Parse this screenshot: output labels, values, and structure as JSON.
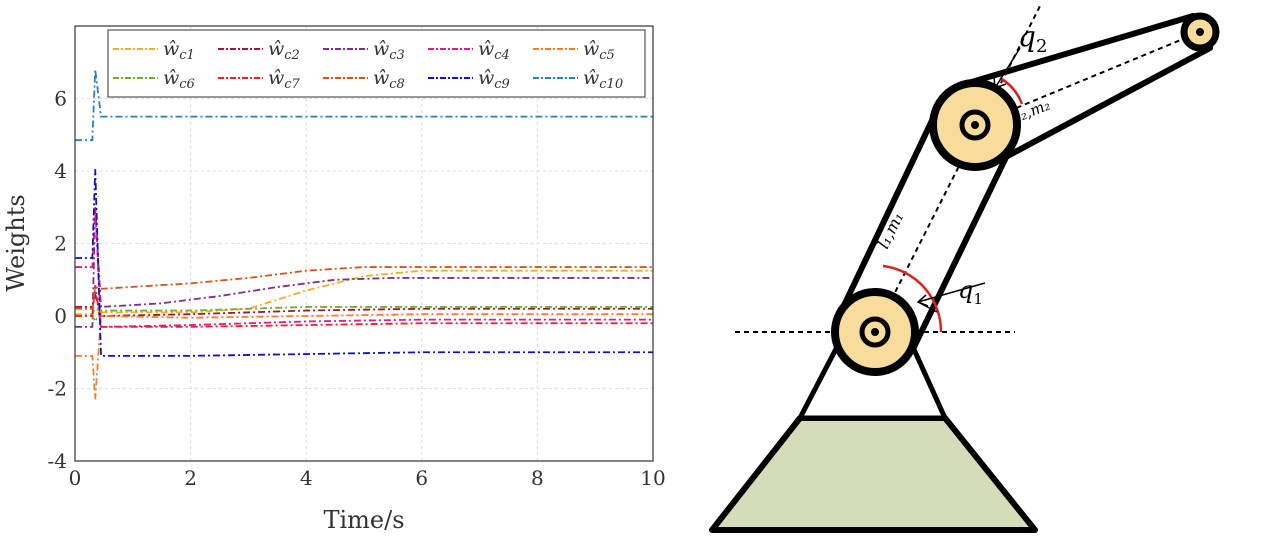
{
  "chart_data": {
    "type": "line",
    "title": "",
    "xlabel": "Time/s",
    "ylabel": "Weights",
    "xlim": [
      0,
      10
    ],
    "ylim": [
      -4,
      8
    ],
    "xticks": [
      "0",
      "2",
      "4",
      "6",
      "8",
      "10"
    ],
    "yticks": [
      "-4",
      "-2",
      "0",
      "2",
      "4",
      "6"
    ],
    "grid": true,
    "legend_position": "top",
    "series": [
      {
        "name": "ŵc1",
        "sub": "c1",
        "color": "#edb120",
        "x": [
          0,
          0.3,
          0.35,
          0.45,
          2,
          3,
          4,
          5,
          6,
          10
        ],
        "y": [
          0.05,
          0.05,
          0.2,
          0.1,
          0.1,
          0.2,
          0.7,
          1.1,
          1.25,
          1.25
        ]
      },
      {
        "name": "ŵc2",
        "sub": "c2",
        "color": "#a2142f",
        "x": [
          0,
          0.3,
          0.35,
          0.45,
          2,
          4,
          6,
          10
        ],
        "y": [
          0.25,
          0.25,
          0.6,
          0.0,
          0.05,
          0.15,
          0.2,
          0.2
        ]
      },
      {
        "name": "ŵc3",
        "sub": "c3",
        "color": "#7e2f8e",
        "x": [
          0,
          0.3,
          0.35,
          0.45,
          1.5,
          2.5,
          3.5,
          4.5,
          5.5,
          10
        ],
        "y": [
          -0.3,
          -0.3,
          3.0,
          0.25,
          0.35,
          0.55,
          0.8,
          1.0,
          1.05,
          1.05
        ]
      },
      {
        "name": "ŵc4",
        "sub": "c4",
        "color": "#e6198c",
        "x": [
          0,
          0.3,
          0.35,
          0.45,
          2,
          4,
          6,
          10
        ],
        "y": [
          1.35,
          1.35,
          3.0,
          -0.3,
          -0.25,
          -0.15,
          -0.1,
          -0.1
        ]
      },
      {
        "name": "ŵc5",
        "sub": "c5",
        "color": "#f08030",
        "x": [
          0,
          0.3,
          0.35,
          0.45,
          2,
          4,
          6,
          10
        ],
        "y": [
          -1.1,
          -1.1,
          -2.3,
          0.0,
          -0.05,
          0.0,
          0.05,
          0.05
        ]
      },
      {
        "name": "ŵc6",
        "sub": "c6",
        "color": "#77ac30",
        "x": [
          0,
          0.3,
          0.35,
          0.45,
          2,
          4,
          6,
          10
        ],
        "y": [
          0.0,
          0.0,
          -0.15,
          0.15,
          0.15,
          0.25,
          0.25,
          0.25
        ]
      },
      {
        "name": "ŵc7",
        "sub": "c7",
        "color": "#e8202a",
        "x": [
          0,
          0.3,
          0.35,
          0.45,
          2,
          4,
          6,
          10
        ],
        "y": [
          0.0,
          0.0,
          0.85,
          -0.3,
          -0.3,
          -0.25,
          -0.2,
          -0.2
        ]
      },
      {
        "name": "ŵc8",
        "sub": "c8",
        "color": "#d95319",
        "x": [
          0,
          0.3,
          0.35,
          0.45,
          2,
          3,
          4,
          5,
          6,
          10
        ],
        "y": [
          0.2,
          0.2,
          0.8,
          0.75,
          0.9,
          1.05,
          1.25,
          1.35,
          1.35,
          1.35
        ]
      },
      {
        "name": "ŵc9",
        "sub": "c9",
        "color": "#1010c8",
        "x": [
          0,
          0.3,
          0.35,
          0.45,
          2,
          4,
          6,
          10
        ],
        "y": [
          1.6,
          1.6,
          4.05,
          -1.1,
          -1.1,
          -1.05,
          -1.0,
          -1.0
        ]
      },
      {
        "name": "ŵc10",
        "sub": "c10",
        "color": "#2a7fc0",
        "x": [
          0,
          0.3,
          0.35,
          0.45,
          2,
          4,
          6,
          10
        ],
        "y": [
          4.85,
          4.85,
          6.8,
          5.5,
          5.5,
          5.5,
          5.5,
          5.5
        ]
      }
    ]
  },
  "diagram": {
    "labels": {
      "q1": "q",
      "q1_sub": "1",
      "q2": "q",
      "q2_sub": "2",
      "link1": "l₁,m₁",
      "link2": "l₂,m₂"
    },
    "colors": {
      "joint": "#f8dc9c",
      "base": "#d4dcb8",
      "angle": "#e02020"
    }
  }
}
